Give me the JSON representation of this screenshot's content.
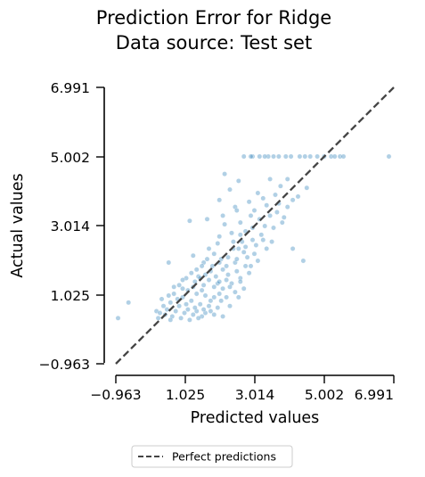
{
  "chart_data": {
    "type": "scatter",
    "title": [
      "Prediction Error for Ridge",
      "Data source: Test set"
    ],
    "xlabel": "Predicted values",
    "ylabel": "Actual values",
    "xlim": [
      -0.963,
      6.991
    ],
    "ylim": [
      -0.963,
      6.991
    ],
    "xticks": [
      "−0.963",
      "1.025",
      "3.014",
      "5.002",
      "6.991"
    ],
    "yticks": [
      "−0.963",
      "1.025",
      "3.014",
      "5.002",
      "6.991"
    ],
    "grid": false,
    "legend_position": "bottom-center",
    "legend": [
      {
        "label": "Perfect predictions",
        "style": "dashed",
        "color": "#444444"
      }
    ],
    "point_color": "#1f77b4",
    "point_opacity": 0.35,
    "reference_line": {
      "from": [
        -0.963,
        -0.963
      ],
      "to": [
        6.991,
        6.991
      ]
    },
    "points": [
      [
        5.0,
        5.002
      ],
      [
        5.2,
        5.002
      ],
      [
        5.45,
        5.002
      ],
      [
        4.6,
        5.002
      ],
      [
        4.3,
        5.002
      ],
      [
        4.05,
        5.002
      ],
      [
        3.7,
        5.002
      ],
      [
        3.4,
        5.002
      ],
      [
        3.15,
        5.002
      ],
      [
        2.95,
        5.002
      ],
      [
        2.7,
        5.002
      ],
      [
        5.55,
        5.002
      ],
      [
        6.85,
        5.002
      ],
      [
        3.55,
        5.002
      ],
      [
        4.8,
        5.002
      ],
      [
        3.9,
        5.002
      ],
      [
        2.9,
        5.002
      ],
      [
        4.45,
        5.002
      ],
      [
        5.3,
        5.002
      ],
      [
        3.3,
        5.002
      ],
      [
        2.15,
        4.5
      ],
      [
        2.55,
        4.3
      ],
      [
        3.45,
        4.35
      ],
      [
        3.75,
        4.15
      ],
      [
        2.3,
        4.05
      ],
      [
        3.1,
        3.95
      ],
      [
        3.6,
        3.9
      ],
      [
        2.0,
        3.75
      ],
      [
        2.85,
        3.7
      ],
      [
        3.35,
        3.6
      ],
      [
        3.95,
        4.35
      ],
      [
        4.1,
        3.75
      ],
      [
        2.45,
        3.55
      ],
      [
        2.1,
        3.3
      ],
      [
        2.9,
        3.3
      ],
      [
        3.15,
        3.2
      ],
      [
        3.65,
        3.4
      ],
      [
        2.6,
        3.1
      ],
      [
        1.15,
        3.15
      ],
      [
        1.65,
        3.2
      ],
      [
        3.8,
        3.1
      ],
      [
        3.3,
        3.0
      ],
      [
        2.75,
        2.85
      ],
      [
        3.2,
        2.75
      ],
      [
        2.35,
        2.8
      ],
      [
        2.0,
        2.7
      ],
      [
        3.55,
        2.95
      ],
      [
        4.1,
        2.35
      ],
      [
        4.4,
        2.0
      ],
      [
        1.7,
        2.35
      ],
      [
        1.25,
        2.15
      ],
      [
        0.55,
        1.95
      ],
      [
        1.85,
        2.2
      ],
      [
        2.05,
        2.05
      ],
      [
        2.4,
        2.35
      ],
      [
        2.65,
        2.55
      ],
      [
        2.95,
        2.6
      ],
      [
        3.05,
        2.45
      ],
      [
        2.7,
        2.25
      ],
      [
        2.25,
        2.1
      ],
      [
        1.55,
        1.95
      ],
      [
        1.8,
        1.85
      ],
      [
        2.1,
        1.75
      ],
      [
        2.45,
        1.95
      ],
      [
        2.8,
        2.1
      ],
      [
        3.0,
        2.2
      ],
      [
        1.35,
        1.75
      ],
      [
        1.6,
        1.6
      ],
      [
        1.9,
        1.55
      ],
      [
        2.2,
        1.45
      ],
      [
        2.5,
        1.7
      ],
      [
        2.75,
        1.85
      ],
      [
        1.05,
        1.5
      ],
      [
        1.3,
        1.4
      ],
      [
        1.55,
        1.3
      ],
      [
        1.85,
        1.25
      ],
      [
        2.1,
        1.2
      ],
      [
        2.35,
        1.35
      ],
      [
        2.6,
        1.5
      ],
      [
        0.85,
        1.3
      ],
      [
        1.1,
        1.15
      ],
      [
        1.35,
        1.05
      ],
      [
        1.6,
        1.0
      ],
      [
        1.85,
        0.95
      ],
      [
        2.05,
        0.85
      ],
      [
        0.7,
        1.05
      ],
      [
        0.95,
        0.95
      ],
      [
        1.2,
        0.85
      ],
      [
        1.45,
        0.75
      ],
      [
        1.7,
        0.7
      ],
      [
        1.95,
        0.65
      ],
      [
        0.6,
        0.8
      ],
      [
        0.85,
        0.7
      ],
      [
        1.1,
        0.6
      ],
      [
        1.35,
        0.55
      ],
      [
        1.6,
        0.5
      ],
      [
        1.85,
        0.45
      ],
      [
        0.5,
        0.6
      ],
      [
        0.75,
        0.55
      ],
      [
        1.0,
        0.5
      ],
      [
        1.25,
        0.45
      ],
      [
        1.5,
        0.4
      ],
      [
        1.75,
        0.55
      ],
      [
        0.45,
        0.45
      ],
      [
        0.65,
        0.4
      ],
      [
        0.9,
        0.35
      ],
      [
        1.15,
        0.3
      ],
      [
        1.4,
        0.35
      ],
      [
        2.1,
        0.4
      ],
      [
        -0.9,
        0.35
      ],
      [
        -0.6,
        0.8
      ],
      [
        0.2,
        0.55
      ],
      [
        0.35,
        0.9
      ],
      [
        2.3,
        0.7
      ],
      [
        2.55,
        0.95
      ],
      [
        2.7,
        1.2
      ],
      [
        1.95,
        1.35
      ],
      [
        1.5,
        1.15
      ],
      [
        1.25,
        1.25
      ],
      [
        0.95,
        1.2
      ],
      [
        0.8,
        0.9
      ],
      [
        2.25,
        1.6
      ],
      [
        2.45,
        1.1
      ],
      [
        1.05,
        0.75
      ],
      [
        1.3,
        0.65
      ],
      [
        1.55,
        0.6
      ],
      [
        1.75,
        0.85
      ],
      [
        2.0,
        1.05
      ],
      [
        2.2,
        0.95
      ],
      [
        1.4,
        1.55
      ],
      [
        1.7,
        1.45
      ],
      [
        2.0,
        1.4
      ],
      [
        2.3,
        1.25
      ],
      [
        2.6,
        1.4
      ],
      [
        2.85,
        1.65
      ],
      [
        1.5,
        1.85
      ],
      [
        1.75,
        1.7
      ],
      [
        2.0,
        1.95
      ],
      [
        2.2,
        1.85
      ],
      [
        2.5,
        2.05
      ],
      [
        2.75,
        2.4
      ],
      [
        3.35,
        2.35
      ],
      [
        3.1,
        2.0
      ],
      [
        2.9,
        1.85
      ],
      [
        3.25,
        2.6
      ],
      [
        3.45,
        3.3
      ],
      [
        3.7,
        3.65
      ],
      [
        2.5,
        3.45
      ],
      [
        2.15,
        3.05
      ],
      [
        1.95,
        2.5
      ],
      [
        2.6,
        2.75
      ],
      [
        3.0,
        3.45
      ],
      [
        3.25,
        3.8
      ],
      [
        2.4,
        2.55
      ],
      [
        2.55,
        2.35
      ],
      [
        1.65,
        2.05
      ],
      [
        1.45,
        1.5
      ],
      [
        1.2,
        1.65
      ],
      [
        0.95,
        1.45
      ],
      [
        0.7,
        1.25
      ],
      [
        0.55,
        1.0
      ],
      [
        0.4,
        0.7
      ],
      [
        0.3,
        0.5
      ],
      [
        0.25,
        0.35
      ],
      [
        0.6,
        0.3
      ],
      [
        2.95,
        2.95
      ],
      [
        3.5,
        2.55
      ],
      [
        3.85,
        3.25
      ],
      [
        3.95,
        3.55
      ],
      [
        4.25,
        3.85
      ],
      [
        4.5,
        4.1
      ]
    ]
  }
}
